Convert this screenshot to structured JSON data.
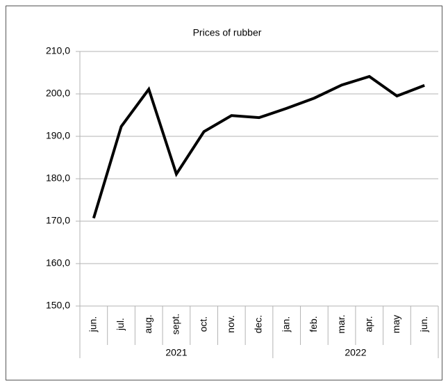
{
  "chart_data": {
    "type": "line",
    "title": "Prices of rubber",
    "categories": [
      "jun.",
      "jul.",
      "aug.",
      "sept.",
      "oct.",
      "nov.",
      "dec.",
      "jan.",
      "feb.",
      "mar.",
      "apr.",
      "may",
      "jun."
    ],
    "category_groups": [
      {
        "label": "2021",
        "count": 7
      },
      {
        "label": "2022",
        "count": 6
      }
    ],
    "series": [
      {
        "color": "#000000",
        "values": [
          170.7,
          192.3,
          201.1,
          181.1,
          191.1,
          194.9,
          194.4,
          196.6,
          199.0,
          202.1,
          204.1,
          199.5,
          202.0
        ]
      }
    ],
    "ylim": [
      150,
      210
    ],
    "yticks": [
      {
        "value": 150,
        "label": "150,0"
      },
      {
        "value": 160,
        "label": "160,0"
      },
      {
        "value": 170,
        "label": "170,0"
      },
      {
        "value": 180,
        "label": "180,0"
      },
      {
        "value": 190,
        "label": "190,0"
      },
      {
        "value": 200,
        "label": "200,0"
      },
      {
        "value": 210,
        "label": "210,0"
      }
    ],
    "grid": true
  }
}
